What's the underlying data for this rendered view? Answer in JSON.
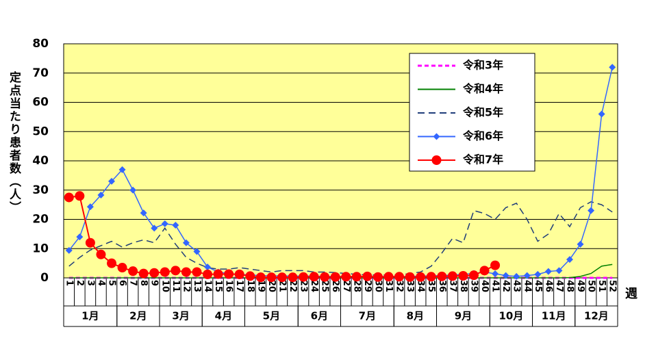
{
  "chart_data": {
    "type": "line",
    "ylabel": "定点当たり患者数（人）",
    "xlabel": "週",
    "categories": [
      "1",
      "2",
      "3",
      "4",
      "5",
      "6",
      "7",
      "8",
      "9",
      "10",
      "11",
      "12",
      "13",
      "14",
      "15",
      "16",
      "17",
      "18",
      "19",
      "20",
      "21",
      "22",
      "23",
      "24",
      "25",
      "26",
      "27",
      "28",
      "29",
      "30",
      "31",
      "32",
      "33",
      "34",
      "35",
      "36",
      "37",
      "38",
      "39",
      "40",
      "41",
      "42",
      "43",
      "44",
      "45",
      "46",
      "47",
      "48",
      "49",
      "50",
      "51",
      "52"
    ],
    "month_of_week": [
      "1月",
      "1月",
      "1月",
      "1月",
      "1月",
      "2月",
      "2月",
      "2月",
      "2月",
      "3月",
      "3月",
      "3月",
      "3月",
      "4月",
      "4月",
      "4月",
      "4月",
      "5月",
      "5月",
      "5月",
      "5月",
      "5月",
      "6月",
      "6月",
      "6月",
      "6月",
      "7月",
      "7月",
      "7月",
      "7月",
      "7月",
      "8月",
      "8月",
      "8月",
      "8月",
      "9月",
      "9月",
      "9月",
      "9月",
      "9月",
      "10月",
      "10月",
      "10月",
      "10月",
      "11月",
      "11月",
      "11月",
      "11月",
      "12月",
      "12月",
      "12月",
      "12月"
    ],
    "ylim": [
      0,
      80
    ],
    "yticks": [
      0,
      10,
      20,
      30,
      40,
      50,
      60,
      70,
      80
    ],
    "grid": true,
    "background": "#ffff99",
    "series": [
      {
        "name": "令和3年",
        "color": "#ff00ff",
        "dash": true,
        "marker": null,
        "values": [
          0,
          0,
          0,
          0,
          0,
          0,
          0,
          0,
          0,
          0,
          0,
          0,
          0,
          0,
          0,
          0,
          0,
          0,
          0,
          0,
          0,
          0,
          0,
          0,
          0,
          0,
          0,
          0,
          0,
          0,
          0,
          0,
          0,
          0,
          0,
          0,
          0,
          0,
          0,
          0,
          0,
          0,
          0,
          0,
          0,
          0,
          0,
          0,
          0,
          0,
          0,
          0
        ]
      },
      {
        "name": "令和4年",
        "color": "#008000",
        "dash": false,
        "marker": null,
        "values": [
          0,
          0,
          0,
          0,
          0,
          0,
          0,
          0,
          0,
          0,
          0,
          0,
          0,
          0,
          0,
          0,
          0,
          0,
          0,
          0,
          0,
          0,
          0,
          0,
          0,
          0,
          0,
          0,
          0,
          0,
          0,
          0,
          0,
          0,
          0,
          0,
          0,
          0,
          0,
          0,
          0,
          0,
          0,
          0,
          0,
          0,
          0,
          0.1,
          0.5,
          1.5,
          4,
          4.6
        ]
      },
      {
        "name": "令和5年",
        "color": "#1f3d7a",
        "dash": true,
        "marker": null,
        "values": [
          4,
          7,
          9.5,
          11,
          12.5,
          10.5,
          12,
          13,
          12,
          17,
          11.5,
          7,
          5,
          3.5,
          3,
          3,
          3.5,
          3,
          2.5,
          2,
          2.5,
          2.5,
          2.5,
          2,
          2,
          1.8,
          1.5,
          1.2,
          1,
          1,
          1,
          1,
          1.5,
          2,
          4,
          8.5,
          13.5,
          12,
          23,
          22,
          20,
          24,
          25.5,
          20,
          12.5,
          15,
          22,
          17.5,
          24,
          26,
          25,
          22.5
        ]
      },
      {
        "name": "令和6年",
        "color": "#3366ff",
        "dash": false,
        "marker": "diamond",
        "values": [
          9.4,
          14,
          24.3,
          28.3,
          33,
          37,
          30,
          22.2,
          17,
          18.5,
          18,
          12,
          9,
          3.7,
          2,
          1.5,
          1.2,
          1,
          0.8,
          0.7,
          0.7,
          0.6,
          0.6,
          0.6,
          0.5,
          0.5,
          0.5,
          0.5,
          0.5,
          0.5,
          0.5,
          0.5,
          0.5,
          0.6,
          0.7,
          0.8,
          1,
          1.2,
          1.5,
          2,
          1.4,
          0.8,
          0.5,
          0.8,
          1.2,
          2.2,
          2.5,
          6.3,
          11.5,
          23,
          56,
          72
        ]
      },
      {
        "name": "令和7年",
        "color": "#ff0000",
        "dash": false,
        "marker": "circle",
        "values": [
          27.5,
          28,
          12,
          8,
          5,
          3.5,
          2.3,
          1.5,
          1.7,
          2,
          2.5,
          2,
          2,
          1.2,
          1.3,
          1.3,
          1.2,
          0.6,
          0.2,
          0.2,
          0.2,
          0.2,
          0.3,
          0.4,
          0.3,
          0.3,
          0.4,
          0.4,
          0.5,
          0.3,
          0.4,
          0.4,
          0.3,
          0.3,
          0.4,
          0.5,
          0.6,
          0.7,
          0.9,
          2.5,
          4.3,
          null,
          null,
          null,
          null,
          null,
          null,
          null,
          null,
          null,
          null,
          null
        ]
      }
    ]
  }
}
